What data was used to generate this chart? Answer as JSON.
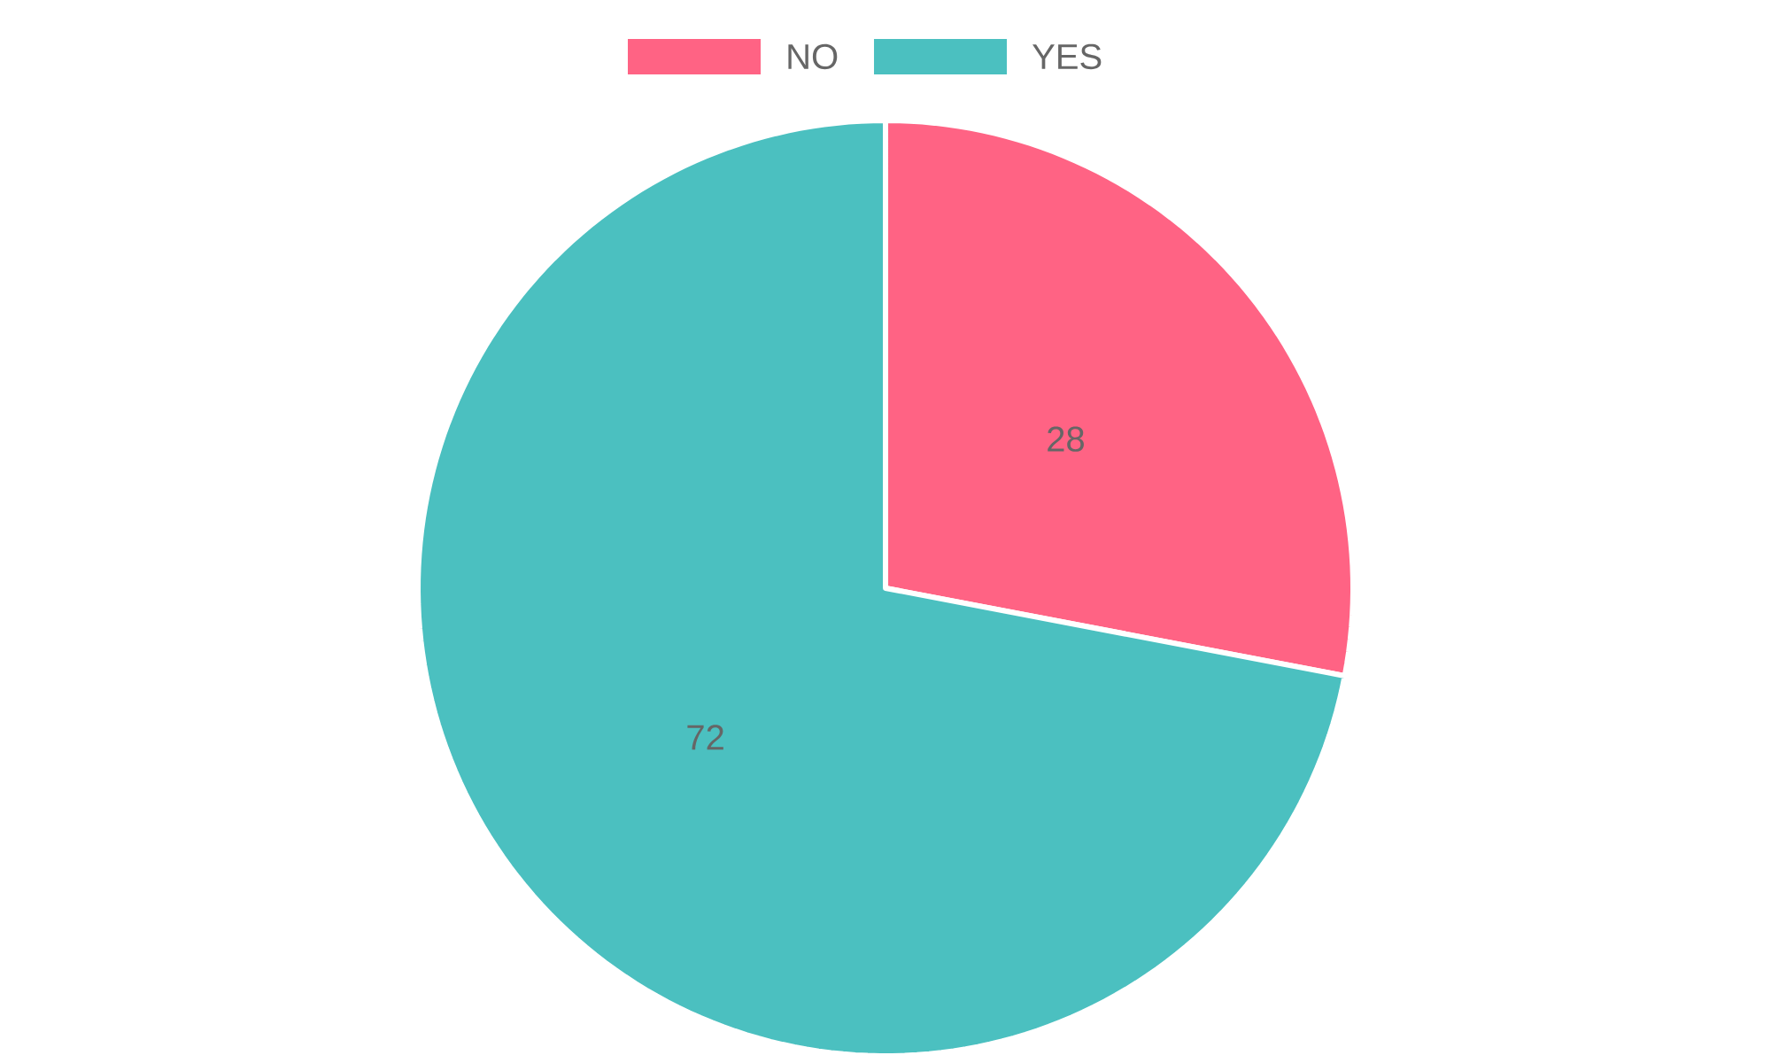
{
  "chart_data": {
    "type": "pie",
    "categories": [
      "NO",
      "YES"
    ],
    "values": [
      28,
      72
    ],
    "colors": [
      "#ff6384",
      "#4bc0c0"
    ],
    "data_labels": true,
    "legend": "top"
  }
}
